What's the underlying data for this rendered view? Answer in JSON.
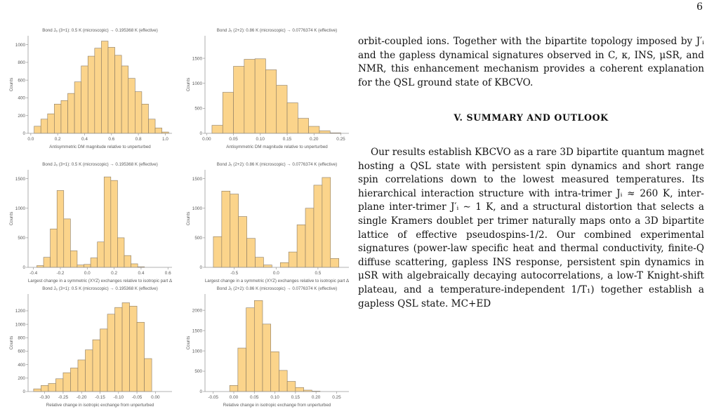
{
  "page_number": "6",
  "figure": {
    "panels": [
      {
        "title": "Bond J₆ (3+1): 0.5 K (microscopic) → 0.195368 K (effective)",
        "xlabel": "Antisymmetric DM magnitude relative to unperturbed",
        "ylabel": "Counts"
      },
      {
        "title": "Bond J₅ (2+2): 0.86 K (microscopic) → 0.0776374 K (effective)",
        "xlabel": "Antisymmetric DM magnitude relative to unperturbed",
        "ylabel": "Counts"
      },
      {
        "title": "Bond J₆ (3+1): 0.5 K (microscopic) → 0.195368 K (effective)",
        "xlabel": "Largest change in a symmetric (XYZ) exchanges relative to isotropic part Δ",
        "ylabel": "Counts"
      },
      {
        "title": "Bond J₅ (2+2): 0.86 K (microscopic) → 0.0776374 K (effective)",
        "xlabel": "Largest change in a symmetric (XYZ) exchanges relative to isotropic part Δ",
        "ylabel": "Counts"
      },
      {
        "title": "Bond J₆ (3+1): 0.5 K (microscopic) → 0.195368 K (effective)",
        "xlabel": "Relative change in isotropic exchange from unperturbed",
        "ylabel": "Counts"
      },
      {
        "title": "Bond J₅ (2+2): 0.86 K (microscopic) → 0.0776374 K (effective)",
        "xlabel": "Relative change in isotropic exchange from unperturbed",
        "ylabel": "Counts"
      }
    ]
  },
  "chart_data": [
    {
      "type": "bar",
      "title": "Bond J₆ (3+1): 0.5 K (microscopic) → 0.195368 K (effective)",
      "xlabel": "Antisymmetric DM magnitude relative to unperturbed",
      "ylabel": "Counts",
      "xlim": [
        -0.02,
        1.05
      ],
      "ylim": [
        0,
        1100
      ],
      "xticks": [
        0.0,
        0.2,
        0.4,
        0.6,
        0.8,
        1.0
      ],
      "xtick_labels": [
        "0.0",
        "0.2",
        "0.4",
        "0.6",
        "0.8",
        "1.0"
      ],
      "yticks": [
        0,
        200,
        400,
        600,
        800,
        1000
      ],
      "ytick_labels": [
        "0",
        "200",
        "400",
        "600",
        "800",
        "1000"
      ],
      "bin_width": 0.05,
      "bins": [
        [
          0.05,
          80
        ],
        [
          0.1,
          160
        ],
        [
          0.15,
          220
        ],
        [
          0.2,
          330
        ],
        [
          0.25,
          370
        ],
        [
          0.3,
          450
        ],
        [
          0.35,
          580
        ],
        [
          0.4,
          760
        ],
        [
          0.45,
          870
        ],
        [
          0.5,
          960
        ],
        [
          0.55,
          1040
        ],
        [
          0.6,
          970
        ],
        [
          0.65,
          880
        ],
        [
          0.7,
          760
        ],
        [
          0.75,
          620
        ],
        [
          0.8,
          470
        ],
        [
          0.85,
          330
        ],
        [
          0.9,
          160
        ],
        [
          0.95,
          60
        ],
        [
          1.0,
          15
        ]
      ]
    },
    {
      "type": "bar",
      "title": "Bond J₅ (2+2): 0.86 K (microscopic) → 0.0776374 K (effective)",
      "xlabel": "Antisymmetric DM magnitude relative to unperturbed",
      "ylabel": "Counts",
      "xlim": [
        -0.003,
        0.265
      ],
      "ylim": [
        0,
        1950
      ],
      "xticks": [
        0.0,
        0.05,
        0.1,
        0.15,
        0.2,
        0.25
      ],
      "xtick_labels": [
        "0.00",
        "0.05",
        "0.10",
        "0.15",
        "0.20",
        "0.25"
      ],
      "yticks": [
        0,
        500,
        1000,
        1500
      ],
      "ytick_labels": [
        "0",
        "500",
        "1000",
        "1500"
      ],
      "bin_width": 0.02,
      "bins": [
        [
          0.02,
          160
        ],
        [
          0.04,
          820
        ],
        [
          0.06,
          1340
        ],
        [
          0.08,
          1480
        ],
        [
          0.1,
          1490
        ],
        [
          0.12,
          1270
        ],
        [
          0.14,
          960
        ],
        [
          0.16,
          610
        ],
        [
          0.18,
          300
        ],
        [
          0.2,
          140
        ],
        [
          0.22,
          50
        ],
        [
          0.24,
          10
        ]
      ]
    },
    {
      "type": "bar",
      "title": "Bond J₆ (3+1): 0.5 K (microscopic) → 0.195368 K (effective)",
      "xlabel": "Largest change in a symmetric (XYZ) exchanges relative to isotropic part Δ",
      "ylabel": "Counts",
      "xlim": [
        -0.44,
        0.63
      ],
      "ylim": [
        0,
        1650
      ],
      "xticks": [
        -0.4,
        -0.2,
        0.0,
        0.2,
        0.4,
        0.6
      ],
      "xtick_labels": [
        "-0.4",
        "-0.2",
        "0.0",
        "0.2",
        "0.4",
        "0.6"
      ],
      "yticks": [
        0,
        500,
        1000,
        1500
      ],
      "ytick_labels": [
        "0",
        "500",
        "1000",
        "1500"
      ],
      "bin_width": 0.05,
      "bins": [
        [
          -0.35,
          30
        ],
        [
          -0.3,
          170
        ],
        [
          -0.25,
          650
        ],
        [
          -0.2,
          1300
        ],
        [
          -0.15,
          820
        ],
        [
          -0.1,
          280
        ],
        [
          -0.05,
          40
        ],
        [
          0.0,
          50
        ],
        [
          0.05,
          160
        ],
        [
          0.1,
          430
        ],
        [
          0.15,
          1530
        ],
        [
          0.2,
          1470
        ],
        [
          0.25,
          500
        ],
        [
          0.3,
          200
        ],
        [
          0.35,
          60
        ],
        [
          0.4,
          10
        ]
      ]
    },
    {
      "type": "bar",
      "title": "Bond J₅ (2+2): 0.86 K (microscopic) → 0.0776374 K (effective)",
      "xlabel": "Largest change in a symmetric (XYZ) exchanges relative to isotropic part Δ",
      "ylabel": "Counts",
      "xlim": [
        -0.85,
        0.87
      ],
      "ylim": [
        0,
        1650
      ],
      "xticks": [
        -0.5,
        0.0,
        0.5
      ],
      "xtick_labels": [
        "-0.5",
        "0.0",
        "0.5"
      ],
      "yticks": [
        0,
        500,
        1000,
        1500
      ],
      "ytick_labels": [
        "0",
        "500",
        "1000",
        "1500"
      ],
      "bin_width": 0.1,
      "bins": [
        [
          -0.7,
          520
        ],
        [
          -0.6,
          1290
        ],
        [
          -0.5,
          1240
        ],
        [
          -0.4,
          860
        ],
        [
          -0.3,
          490
        ],
        [
          -0.2,
          170
        ],
        [
          -0.1,
          40
        ],
        [
          0.1,
          80
        ],
        [
          0.2,
          260
        ],
        [
          0.3,
          720
        ],
        [
          0.4,
          1000
        ],
        [
          0.5,
          1390
        ],
        [
          0.6,
          1520
        ],
        [
          0.7,
          150
        ]
      ]
    },
    {
      "type": "bar",
      "title": "Bond J₆ (3+1): 0.5 K (microscopic) → 0.195368 K (effective)",
      "xlabel": "Relative change in isotropic exchange from unperturbed",
      "ylabel": "Counts",
      "xlim": [
        -0.345,
        0.045
      ],
      "ylim": [
        0,
        1450
      ],
      "xticks": [
        -0.3,
        -0.25,
        -0.2,
        -0.15,
        -0.1,
        -0.05,
        0.0
      ],
      "xtick_labels": [
        "-0.30",
        "-0.25",
        "-0.20",
        "-0.15",
        "-0.10",
        "-0.05",
        "0.00"
      ],
      "yticks": [
        0,
        200,
        400,
        600,
        800,
        1000,
        1200
      ],
      "ytick_labels": [
        "0",
        "200",
        "400",
        "600",
        "800",
        "1000",
        "1200"
      ],
      "bin_width": 0.02,
      "bins": [
        [
          -0.32,
          40
        ],
        [
          -0.3,
          90
        ],
        [
          -0.28,
          120
        ],
        [
          -0.26,
          190
        ],
        [
          -0.24,
          280
        ],
        [
          -0.22,
          350
        ],
        [
          -0.2,
          470
        ],
        [
          -0.18,
          620
        ],
        [
          -0.16,
          770
        ],
        [
          -0.14,
          930
        ],
        [
          -0.12,
          1150
        ],
        [
          -0.1,
          1250
        ],
        [
          -0.08,
          1320
        ],
        [
          -0.06,
          1270
        ],
        [
          -0.04,
          1030
        ],
        [
          -0.02,
          490
        ]
      ]
    },
    {
      "type": "bar",
      "title": "Bond J₅ (2+2): 0.86 K (microscopic) → 0.0776374 K (effective)",
      "xlabel": "Relative change in isotropic exchange from unperturbed",
      "ylabel": "Counts",
      "xlim": [
        -0.07,
        0.28
      ],
      "ylim": [
        0,
        2400
      ],
      "xticks": [
        -0.05,
        0.0,
        0.05,
        0.1,
        0.15,
        0.2,
        0.25
      ],
      "xtick_labels": [
        "-0.05",
        "0.00",
        "0.05",
        "0.10",
        "0.15",
        "0.20",
        "0.25"
      ],
      "yticks": [
        0,
        500,
        1000,
        1500,
        2000
      ],
      "ytick_labels": [
        "0",
        "500",
        "1000",
        "1500",
        "2000"
      ],
      "bin_width": 0.02,
      "bins": [
        [
          0.0,
          150
        ],
        [
          0.02,
          1070
        ],
        [
          0.04,
          2060
        ],
        [
          0.06,
          2240
        ],
        [
          0.08,
          1660
        ],
        [
          0.1,
          980
        ],
        [
          0.12,
          520
        ],
        [
          0.14,
          250
        ],
        [
          0.16,
          100
        ],
        [
          0.18,
          35
        ],
        [
          0.2,
          10
        ]
      ]
    }
  ],
  "text": {
    "para1": "orbit-coupled ions. Together with the bipartite topology imposed by J′ᵢ and the gapless dynamical signatures observed in C, κ, INS, μSR, and NMR, this enhancement mechanism provides a coherent explanation for the QSL ground state of KBCVO.",
    "section_heading": "V.    SUMMARY AND OUTLOOK",
    "para2": "Our results establish KBCVO as a rare 3D bipartite quantum magnet hosting a QSL state with persistent spin dynamics and short range spin correlations down to the lowest measured temperatures. Its hierarchical interaction structure with intra-trimer Jᵢ ≈ 260 K, inter-plane inter-trimer J′ᵢ ∼ 1 K, and a structural distortion that selects a single Kramers doublet per trimer naturally maps onto a 3D bipartite lattice of effective pseudospins-1/2. Our combined experimental signatures (power-law specific heat and thermal conductivity, finite-Q diffuse scattering, gapless INS response, persistent spin dynamics in μSR with algebraically decaying autocorrelations, a low-T Knight-shift plateau, and a temperature-independent 1/T₁) together establish a gapless QSL state. MC+ED"
  }
}
